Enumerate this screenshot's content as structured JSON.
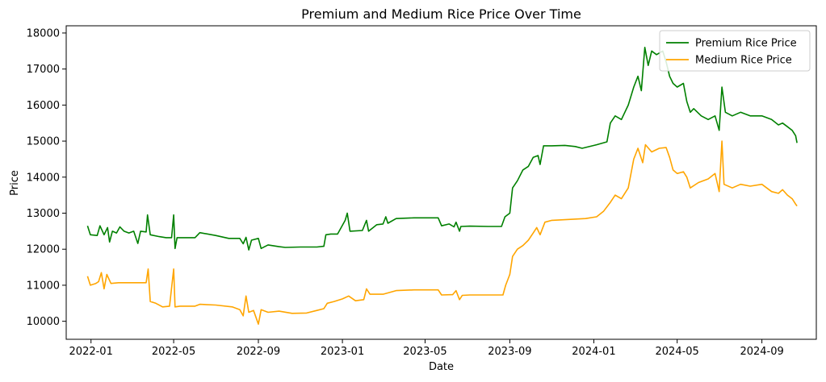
{
  "chart_data": {
    "type": "line",
    "title": "Premium and Medium Rice Price Over Time",
    "xlabel": "Date",
    "ylabel": "Price",
    "x_ticks": [
      "2022-01",
      "2022-05",
      "2022-09",
      "2023-01",
      "2023-05",
      "2023-09",
      "2024-01",
      "2024-05",
      "2024-09"
    ],
    "y_ticks": [
      10000,
      11000,
      12000,
      13000,
      14000,
      15000,
      16000,
      17000,
      18000
    ],
    "xlim": [
      "2021-11-26",
      "2024-11-19"
    ],
    "ylim": [
      9500,
      18200
    ],
    "grid": false,
    "legend_position": "top-right",
    "series": [
      {
        "name": "Premium Rice Price",
        "color": "#008000",
        "points": [
          [
            "2021-12-27",
            12650
          ],
          [
            "2021-12-31",
            12400
          ],
          [
            "2022-01-10",
            12380
          ],
          [
            "2022-01-14",
            12650
          ],
          [
            "2022-01-20",
            12400
          ],
          [
            "2022-01-25",
            12600
          ],
          [
            "2022-01-28",
            12200
          ],
          [
            "2022-02-01",
            12500
          ],
          [
            "2022-02-07",
            12450
          ],
          [
            "2022-02-12",
            12620
          ],
          [
            "2022-02-18",
            12500
          ],
          [
            "2022-02-25",
            12450
          ],
          [
            "2022-03-04",
            12500
          ],
          [
            "2022-03-10",
            12160
          ],
          [
            "2022-03-14",
            12500
          ],
          [
            "2022-03-22",
            12480
          ],
          [
            "2022-03-24",
            12950
          ],
          [
            "2022-03-28",
            12400
          ],
          [
            "2022-04-10",
            12350
          ],
          [
            "2022-04-20",
            12320
          ],
          [
            "2022-04-28",
            12320
          ],
          [
            "2022-05-01",
            12950
          ],
          [
            "2022-05-03",
            12020
          ],
          [
            "2022-05-06",
            12320
          ],
          [
            "2022-05-20",
            12320
          ],
          [
            "2022-06-01",
            12320
          ],
          [
            "2022-06-08",
            12460
          ],
          [
            "2022-07-01",
            12380
          ],
          [
            "2022-07-20",
            12300
          ],
          [
            "2022-08-05",
            12300
          ],
          [
            "2022-08-10",
            12150
          ],
          [
            "2022-08-14",
            12330
          ],
          [
            "2022-08-18",
            11980
          ],
          [
            "2022-08-22",
            12250
          ],
          [
            "2022-09-01",
            12300
          ],
          [
            "2022-09-05",
            12020
          ],
          [
            "2022-09-15",
            12120
          ],
          [
            "2022-10-01",
            12070
          ],
          [
            "2022-10-10",
            12050
          ],
          [
            "2022-11-01",
            12060
          ],
          [
            "2022-11-25",
            12060
          ],
          [
            "2022-12-05",
            12080
          ],
          [
            "2022-12-08",
            12400
          ],
          [
            "2022-12-15",
            12420
          ],
          [
            "2022-12-25",
            12420
          ],
          [
            "2023-01-05",
            12800
          ],
          [
            "2023-01-08",
            13000
          ],
          [
            "2023-01-12",
            12500
          ],
          [
            "2023-01-30",
            12520
          ],
          [
            "2023-02-05",
            12800
          ],
          [
            "2023-02-08",
            12500
          ],
          [
            "2023-02-20",
            12680
          ],
          [
            "2023-03-01",
            12700
          ],
          [
            "2023-03-05",
            12900
          ],
          [
            "2023-03-08",
            12720
          ],
          [
            "2023-03-20",
            12850
          ],
          [
            "2023-04-15",
            12870
          ],
          [
            "2023-05-20",
            12870
          ],
          [
            "2023-05-25",
            12650
          ],
          [
            "2023-06-05",
            12700
          ],
          [
            "2023-06-12",
            12620
          ],
          [
            "2023-06-15",
            12750
          ],
          [
            "2023-06-20",
            12500
          ],
          [
            "2023-06-22",
            12630
          ],
          [
            "2023-07-05",
            12640
          ],
          [
            "2023-08-01",
            12630
          ],
          [
            "2023-08-20",
            12630
          ],
          [
            "2023-08-25",
            12900
          ],
          [
            "2023-09-01",
            13000
          ],
          [
            "2023-09-05",
            13700
          ],
          [
            "2023-09-12",
            13900
          ],
          [
            "2023-09-20",
            14200
          ],
          [
            "2023-09-28",
            14300
          ],
          [
            "2023-10-05",
            14550
          ],
          [
            "2023-10-12",
            14600
          ],
          [
            "2023-10-15",
            14350
          ],
          [
            "2023-10-20",
            14870
          ],
          [
            "2023-11-01",
            14870
          ],
          [
            "2023-11-20",
            14880
          ],
          [
            "2023-12-05",
            14850
          ],
          [
            "2023-12-15",
            14800
          ],
          [
            "2024-01-05",
            14900
          ],
          [
            "2024-01-20",
            14980
          ],
          [
            "2024-01-25",
            15500
          ],
          [
            "2024-02-01",
            15700
          ],
          [
            "2024-02-10",
            15600
          ],
          [
            "2024-02-20",
            16000
          ],
          [
            "2024-02-28",
            16500
          ],
          [
            "2024-03-05",
            16800
          ],
          [
            "2024-03-10",
            16400
          ],
          [
            "2024-03-15",
            17600
          ],
          [
            "2024-03-20",
            17100
          ],
          [
            "2024-03-25",
            17500
          ],
          [
            "2024-04-01",
            17400
          ],
          [
            "2024-04-10",
            17500
          ],
          [
            "2024-04-15",
            17200
          ],
          [
            "2024-04-20",
            16800
          ],
          [
            "2024-04-25",
            16600
          ],
          [
            "2024-05-01",
            16500
          ],
          [
            "2024-05-10",
            16600
          ],
          [
            "2024-05-15",
            16100
          ],
          [
            "2024-05-20",
            15800
          ],
          [
            "2024-05-25",
            15900
          ],
          [
            "2024-06-05",
            15700
          ],
          [
            "2024-06-15",
            15600
          ],
          [
            "2024-06-25",
            15700
          ],
          [
            "2024-07-01",
            15300
          ],
          [
            "2024-07-05",
            16500
          ],
          [
            "2024-07-10",
            15800
          ],
          [
            "2024-07-20",
            15700
          ],
          [
            "2024-08-01",
            15800
          ],
          [
            "2024-08-15",
            15700
          ],
          [
            "2024-09-01",
            15700
          ],
          [
            "2024-09-15",
            15600
          ],
          [
            "2024-09-25",
            15450
          ],
          [
            "2024-10-01",
            15500
          ],
          [
            "2024-10-08",
            15400
          ],
          [
            "2024-10-15",
            15300
          ],
          [
            "2024-10-20",
            15150
          ],
          [
            "2024-10-22",
            14950
          ]
        ]
      },
      {
        "name": "Medium Rice Price",
        "color": "#ffa500",
        "points": [
          [
            "2021-12-27",
            11250
          ],
          [
            "2021-12-31",
            11000
          ],
          [
            "2022-01-08",
            11050
          ],
          [
            "2022-01-12",
            11100
          ],
          [
            "2022-01-16",
            11350
          ],
          [
            "2022-01-20",
            10900
          ],
          [
            "2022-01-24",
            11300
          ],
          [
            "2022-01-30",
            11050
          ],
          [
            "2022-02-10",
            11070
          ],
          [
            "2022-02-28",
            11070
          ],
          [
            "2022-03-10",
            11070
          ],
          [
            "2022-03-22",
            11070
          ],
          [
            "2022-03-25",
            11450
          ],
          [
            "2022-03-28",
            10550
          ],
          [
            "2022-04-05",
            10500
          ],
          [
            "2022-04-15",
            10400
          ],
          [
            "2022-04-25",
            10420
          ],
          [
            "2022-05-01",
            11450
          ],
          [
            "2022-05-03",
            10400
          ],
          [
            "2022-05-10",
            10420
          ],
          [
            "2022-06-01",
            10420
          ],
          [
            "2022-06-08",
            10470
          ],
          [
            "2022-07-01",
            10450
          ],
          [
            "2022-07-25",
            10400
          ],
          [
            "2022-08-05",
            10320
          ],
          [
            "2022-08-10",
            10150
          ],
          [
            "2022-08-14",
            10700
          ],
          [
            "2022-08-18",
            10250
          ],
          [
            "2022-08-25",
            10300
          ],
          [
            "2022-09-01",
            9920
          ],
          [
            "2022-09-05",
            10320
          ],
          [
            "2022-09-15",
            10250
          ],
          [
            "2022-10-01",
            10280
          ],
          [
            "2022-10-20",
            10220
          ],
          [
            "2022-11-10",
            10230
          ],
          [
            "2022-11-25",
            10300
          ],
          [
            "2022-12-05",
            10350
          ],
          [
            "2022-12-10",
            10500
          ],
          [
            "2022-12-20",
            10550
          ],
          [
            "2023-01-01",
            10620
          ],
          [
            "2023-01-10",
            10700
          ],
          [
            "2023-01-20",
            10570
          ],
          [
            "2023-02-01",
            10600
          ],
          [
            "2023-02-05",
            10900
          ],
          [
            "2023-02-10",
            10750
          ],
          [
            "2023-03-01",
            10750
          ],
          [
            "2023-03-20",
            10850
          ],
          [
            "2023-04-15",
            10870
          ],
          [
            "2023-05-20",
            10870
          ],
          [
            "2023-05-25",
            10730
          ],
          [
            "2023-06-10",
            10740
          ],
          [
            "2023-06-15",
            10850
          ],
          [
            "2023-06-20",
            10600
          ],
          [
            "2023-06-24",
            10720
          ],
          [
            "2023-07-05",
            10730
          ],
          [
            "2023-08-01",
            10730
          ],
          [
            "2023-08-22",
            10730
          ],
          [
            "2023-08-26",
            11000
          ],
          [
            "2023-09-01",
            11300
          ],
          [
            "2023-09-05",
            11800
          ],
          [
            "2023-09-12",
            12000
          ],
          [
            "2023-09-20",
            12100
          ],
          [
            "2023-09-28",
            12250
          ],
          [
            "2023-10-05",
            12450
          ],
          [
            "2023-10-10",
            12600
          ],
          [
            "2023-10-15",
            12400
          ],
          [
            "2023-10-22",
            12750
          ],
          [
            "2023-11-01",
            12800
          ],
          [
            "2023-12-01",
            12830
          ],
          [
            "2023-12-20",
            12850
          ],
          [
            "2024-01-05",
            12900
          ],
          [
            "2024-01-15",
            13050
          ],
          [
            "2024-01-25",
            13300
          ],
          [
            "2024-02-01",
            13500
          ],
          [
            "2024-02-10",
            13400
          ],
          [
            "2024-02-20",
            13700
          ],
          [
            "2024-02-28",
            14500
          ],
          [
            "2024-03-05",
            14800
          ],
          [
            "2024-03-12",
            14400
          ],
          [
            "2024-03-16",
            14900
          ],
          [
            "2024-03-25",
            14700
          ],
          [
            "2024-04-05",
            14800
          ],
          [
            "2024-04-15",
            14820
          ],
          [
            "2024-04-20",
            14550
          ],
          [
            "2024-04-25",
            14200
          ],
          [
            "2024-05-01",
            14100
          ],
          [
            "2024-05-10",
            14150
          ],
          [
            "2024-05-15",
            14000
          ],
          [
            "2024-05-20",
            13700
          ],
          [
            "2024-06-01",
            13850
          ],
          [
            "2024-06-15",
            13950
          ],
          [
            "2024-06-25",
            14100
          ],
          [
            "2024-07-01",
            13600
          ],
          [
            "2024-07-05",
            15000
          ],
          [
            "2024-07-08",
            13800
          ],
          [
            "2024-07-20",
            13700
          ],
          [
            "2024-08-01",
            13800
          ],
          [
            "2024-08-15",
            13750
          ],
          [
            "2024-09-01",
            13800
          ],
          [
            "2024-09-15",
            13600
          ],
          [
            "2024-09-25",
            13550
          ],
          [
            "2024-10-01",
            13650
          ],
          [
            "2024-10-08",
            13500
          ],
          [
            "2024-10-15",
            13400
          ],
          [
            "2024-10-20",
            13250
          ],
          [
            "2024-10-22",
            13200
          ]
        ]
      }
    ]
  }
}
